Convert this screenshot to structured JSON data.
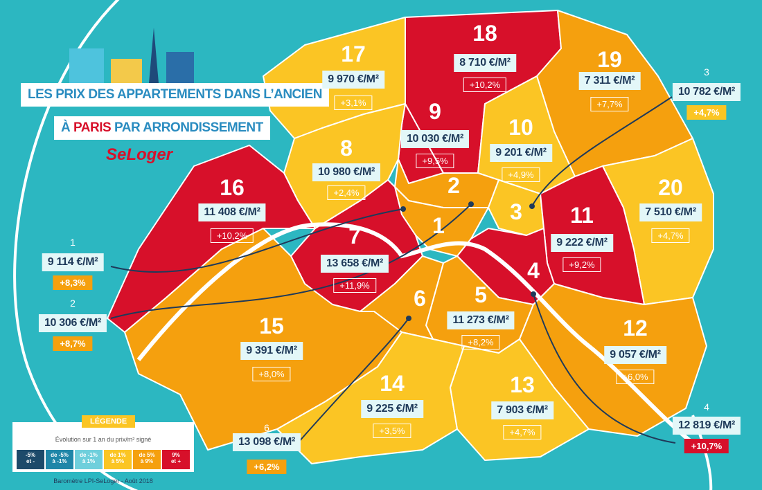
{
  "title": {
    "line1": "LES PRIX DES APPARTEMENTS DANS L’ANCIEN",
    "line2_before": "À",
    "line2_highlight": "PARIS",
    "line2_after": "PAR ARRONDISSEMENT"
  },
  "brand": "SeLoger",
  "districts": [
    {
      "number": "18",
      "price": "8 710 €/M²",
      "change": "+10,2%"
    },
    {
      "number": "17",
      "price": "9 970 €/M²",
      "change": "+3,1%"
    },
    {
      "number": "19",
      "price": "7 311 €/M²",
      "change": "+7,7%"
    },
    {
      "number": "9",
      "price": "10 030 €/M²",
      "change": "+9,5%"
    },
    {
      "number": "10",
      "price": "9 201 €/M²",
      "change": "+4,9%"
    },
    {
      "number": "8",
      "price": "10 980 €/M²",
      "change": "+2,4%"
    },
    {
      "number": "16",
      "price": "11 408 €/M²",
      "change": "+10,2%"
    },
    {
      "number": "2"
    },
    {
      "number": "1"
    },
    {
      "number": "3"
    },
    {
      "number": "7",
      "price": "13 658 €/M²",
      "change": "+11,9%"
    },
    {
      "number": "20",
      "price": "7 510 €/M²",
      "change": "+4,7%"
    },
    {
      "number": "11",
      "price": "9 222 €/M²",
      "change": "+9,2%"
    },
    {
      "number": "4"
    },
    {
      "number": "5",
      "price": "11 273 €/M²",
      "change": "+8,2%"
    },
    {
      "number": "6"
    },
    {
      "number": "15",
      "price": "9 391 €/M²",
      "change": "+8,0%"
    },
    {
      "number": "12",
      "price": "9 057 €/M²",
      "change": "+6,0%"
    },
    {
      "number": "14",
      "price": "9 225 €/M²",
      "change": "+3,5%"
    },
    {
      "number": "13",
      "price": "7 903 €/M²",
      "change": "+4,7%"
    }
  ],
  "callouts": [
    {
      "number": "1",
      "price": "9 114 €/M²",
      "change": "+8,3%",
      "color": "#f5a00e"
    },
    {
      "number": "2",
      "price": "10 306 €/M²",
      "change": "+8,7%",
      "color": "#f5a00e"
    },
    {
      "number": "3",
      "price": "10 782 €/M²",
      "change": "+4,7%",
      "color": "#fbc524"
    },
    {
      "number": "4",
      "price": "12 819 €/M²",
      "change": "+10,7%",
      "color": "#d7102a"
    },
    {
      "number": "6",
      "price": "13 098 €/M²",
      "change": "+6,2%",
      "color": "#f5a00e"
    }
  ],
  "legend": {
    "title": "LÉGENDE",
    "subtitle": "Évolution sur 1 an du prix/m² signé",
    "items": [
      {
        "line1": "-5%",
        "line2": "et -",
        "color": "#1d4a6a"
      },
      {
        "line1": "de -5%",
        "line2": "à -1%",
        "color": "#1f86a8"
      },
      {
        "line1": "de -1%",
        "line2": "à 1%",
        "color": "#6fcfdc"
      },
      {
        "line1": "de 1%",
        "line2": "à 5%",
        "color": "#fbc524"
      },
      {
        "line1": "de 5%",
        "line2": "à 9%",
        "color": "#f5a00e"
      },
      {
        "line1": "9%",
        "line2": "et +",
        "color": "#d7102a"
      }
    ]
  },
  "source": "Baromètre LPI-SeLoger - Août 2018"
}
